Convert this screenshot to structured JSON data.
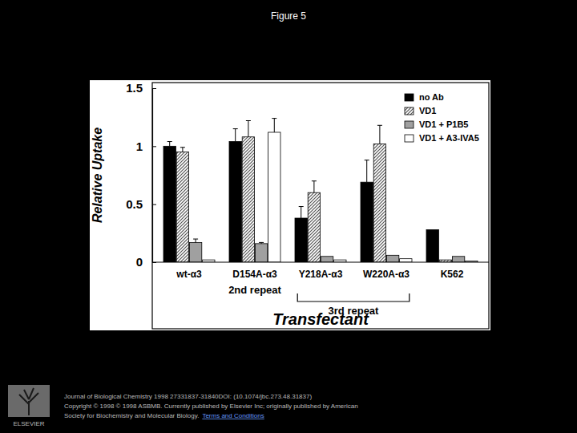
{
  "page": {
    "title": "Figure 5",
    "citation": [
      "Journal of Biological Chemistry 1998 27331837-31840DOI: (10.1074/jbc.273.48.31837)",
      "Copyright © 1998 © 1998 ASBMB. Currently published by Elsevier Inc; originally published by American",
      "Society for Biochemistry and Molecular Biology."
    ],
    "link": "Terms and Conditions",
    "logo": "ELSEVIER"
  },
  "chart_data": {
    "type": "bar",
    "y_label": "Relative Uptake",
    "x_label": "Transfectant",
    "categories": [
      "wt-α3",
      "D154A-α3",
      "Y218A-α3",
      "W220A-α3",
      "K562"
    ],
    "annotations": [
      {
        "text": "2nd repeat",
        "categories": [
          "D154A-α3"
        ]
      },
      {
        "text": "3rd repeat",
        "categories": [
          "Y218A-α3",
          "W220A-α3"
        ]
      }
    ],
    "series": [
      {
        "name": "no Ab",
        "color": "#000000",
        "values": [
          1.0,
          1.04,
          0.38,
          0.69,
          0.28
        ],
        "errors": [
          0.04,
          0.11,
          0.1,
          0.19,
          null
        ]
      },
      {
        "name": "VD1",
        "color": "#555555",
        "line_style": "hatched",
        "values": [
          0.95,
          1.08,
          0.6,
          1.02,
          0.02
        ],
        "errors": [
          0.04,
          0.14,
          0.1,
          0.16,
          null
        ]
      },
      {
        "name": "VD1 + P1B5",
        "color": "#a0a0a0",
        "values": [
          0.17,
          0.16,
          0.05,
          0.06,
          0.05
        ],
        "errors": [
          0.03,
          0.01,
          null,
          null,
          null
        ]
      },
      {
        "name": "VD1 + A3-IVA5",
        "color": "#ffffff",
        "values": [
          0.02,
          1.12,
          0.02,
          0.03,
          0.01
        ],
        "errors": [
          null,
          0.12,
          null,
          null,
          null
        ]
      }
    ],
    "ylim": [
      0,
      1.5
    ],
    "yticks": [
      0,
      0.5,
      1,
      1.5
    ],
    "legend": "upper right"
  }
}
